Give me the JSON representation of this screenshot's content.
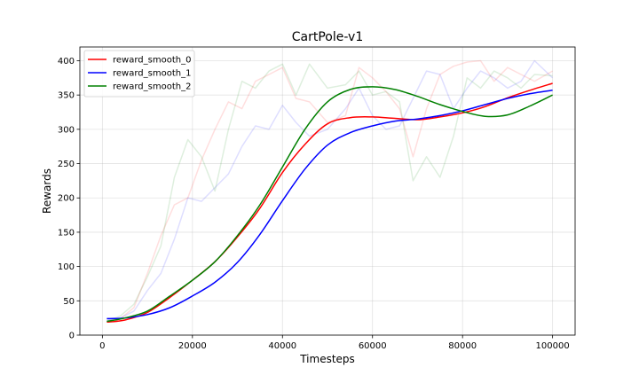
{
  "chart_data": {
    "type": "line",
    "title": "CartPole-v1",
    "xlabel": "Timesteps",
    "ylabel": "Rewards",
    "xlim": [
      -5000,
      105000
    ],
    "ylim": [
      0,
      420
    ],
    "xticks": [
      0,
      20000,
      40000,
      60000,
      80000,
      100000
    ],
    "xtick_labels": [
      "0",
      "20000",
      "40000",
      "60000",
      "80000",
      "100000"
    ],
    "yticks": [
      0,
      50,
      100,
      150,
      200,
      250,
      300,
      350,
      400
    ],
    "ytick_labels": [
      "0",
      "50",
      "100",
      "150",
      "200",
      "250",
      "300",
      "350",
      "400"
    ],
    "grid": true,
    "legend_position": "top-left",
    "series": [
      {
        "name": "reward_smooth_0",
        "color": "#ff0000",
        "x": [
          1000,
          5000,
          10000,
          15000,
          20000,
          25000,
          30000,
          35000,
          40000,
          45000,
          50000,
          55000,
          60000,
          65000,
          70000,
          75000,
          80000,
          85000,
          90000,
          95000,
          100000
        ],
        "values": [
          19,
          22,
          33,
          55,
          80,
          107,
          143,
          185,
          237,
          278,
          308,
          317,
          318,
          316,
          314,
          318,
          324,
          333,
          346,
          357,
          367
        ]
      },
      {
        "name": "reward_smooth_1",
        "color": "#0000ff",
        "x": [
          1000,
          5000,
          10000,
          15000,
          20000,
          25000,
          30000,
          35000,
          40000,
          45000,
          50000,
          55000,
          60000,
          65000,
          70000,
          75000,
          80000,
          85000,
          90000,
          95000,
          100000
        ],
        "values": [
          24,
          25,
          30,
          40,
          57,
          77,
          106,
          147,
          196,
          242,
          277,
          295,
          305,
          312,
          315,
          320,
          327,
          336,
          345,
          352,
          357
        ]
      },
      {
        "name": "reward_smooth_2",
        "color": "#008000",
        "x": [
          1000,
          5000,
          10000,
          15000,
          20000,
          25000,
          30000,
          35000,
          40000,
          45000,
          50000,
          55000,
          60000,
          65000,
          70000,
          75000,
          80000,
          85000,
          90000,
          95000,
          100000
        ],
        "values": [
          20,
          25,
          35,
          57,
          80,
          107,
          145,
          190,
          245,
          300,
          340,
          358,
          362,
          358,
          348,
          336,
          326,
          319,
          321,
          334,
          350
        ]
      }
    ],
    "raw_series": [
      {
        "color": "#ff0000",
        "x": [
          1000,
          4000,
          7000,
          10000,
          13000,
          16000,
          19000,
          22000,
          25000,
          28000,
          31000,
          34000,
          37000,
          40000,
          43000,
          46000,
          50000,
          54000,
          57000,
          60000,
          63000,
          66000,
          69000,
          72000,
          75000,
          78000,
          81000,
          84000,
          87000,
          90000,
          93000,
          96000,
          100000
        ],
        "values": [
          20,
          24,
          40,
          90,
          145,
          190,
          200,
          255,
          300,
          340,
          330,
          370,
          380,
          390,
          345,
          340,
          310,
          320,
          390,
          375,
          355,
          330,
          260,
          330,
          380,
          392,
          398,
          400,
          370,
          390,
          380,
          370,
          385
        ]
      },
      {
        "color": "#0000ff",
        "x": [
          1000,
          4000,
          7000,
          10000,
          13000,
          16000,
          19000,
          22000,
          25000,
          28000,
          31000,
          34000,
          37000,
          40000,
          43000,
          46000,
          50000,
          54000,
          57000,
          60000,
          63000,
          66000,
          69000,
          72000,
          75000,
          78000,
          81000,
          84000,
          87000,
          90000,
          93000,
          96000,
          100000
        ],
        "values": [
          22,
          25,
          35,
          65,
          90,
          140,
          200,
          195,
          215,
          235,
          275,
          305,
          300,
          335,
          310,
          290,
          300,
          330,
          360,
          320,
          300,
          305,
          345,
          385,
          380,
          330,
          360,
          385,
          375,
          360,
          370,
          400,
          375
        ]
      },
      {
        "color": "#008000",
        "x": [
          1000,
          4000,
          7000,
          10000,
          13000,
          16000,
          19000,
          22000,
          25000,
          28000,
          31000,
          34000,
          37000,
          40000,
          43000,
          46000,
          50000,
          54000,
          57000,
          60000,
          63000,
          66000,
          69000,
          72000,
          75000,
          78000,
          81000,
          84000,
          87000,
          90000,
          93000,
          96000,
          100000
        ],
        "values": [
          20,
          28,
          45,
          85,
          130,
          230,
          285,
          260,
          210,
          300,
          370,
          360,
          385,
          395,
          350,
          395,
          360,
          365,
          385,
          350,
          355,
          340,
          225,
          260,
          230,
          290,
          375,
          360,
          385,
          375,
          360,
          380,
          378
        ]
      }
    ]
  }
}
